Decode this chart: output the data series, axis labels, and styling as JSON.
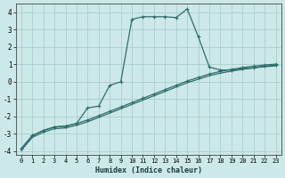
{
  "xlabel": "Humidex (Indice chaleur)",
  "bg_color": "#cde8e8",
  "grid_color": "#aacece",
  "line_color": "#2d6e6a",
  "xlim": [
    -0.5,
    23.5
  ],
  "ylim": [
    -4.2,
    4.5
  ],
  "xticks": [
    0,
    1,
    2,
    3,
    4,
    5,
    6,
    7,
    8,
    9,
    10,
    11,
    12,
    13,
    14,
    15,
    16,
    17,
    18,
    19,
    20,
    21,
    22,
    23
  ],
  "yticks": [
    -4,
    -3,
    -2,
    -1,
    0,
    1,
    2,
    3,
    4
  ],
  "line1_x": [
    0,
    1,
    2,
    3,
    4,
    5,
    6,
    7,
    8,
    9,
    10,
    11,
    12,
    13,
    14,
    15,
    16,
    17,
    18,
    19,
    20,
    21,
    22,
    23
  ],
  "line1_y": [
    -3.85,
    -3.1,
    -2.8,
    -2.6,
    -2.55,
    -2.4,
    -2.2,
    -1.95,
    -1.7,
    -1.45,
    -1.2,
    -0.95,
    -0.7,
    -0.45,
    -0.2,
    0.05,
    0.25,
    0.45,
    0.6,
    0.72,
    0.82,
    0.9,
    0.97,
    1.02
  ],
  "line2_x": [
    0,
    1,
    2,
    3,
    4,
    5,
    6,
    7,
    8,
    9,
    10,
    11,
    12,
    13,
    14,
    15,
    16,
    17,
    18,
    19,
    20,
    21,
    22,
    23
  ],
  "line2_y": [
    -3.95,
    -3.2,
    -2.9,
    -2.7,
    -2.65,
    -2.5,
    -2.3,
    -2.05,
    -1.8,
    -1.55,
    -1.3,
    -1.05,
    -0.8,
    -0.55,
    -0.3,
    -0.05,
    0.15,
    0.35,
    0.5,
    0.62,
    0.72,
    0.8,
    0.87,
    0.92
  ],
  "curve_x": [
    0,
    1,
    2,
    3,
    4,
    5,
    6,
    7,
    8,
    9,
    10,
    11,
    12,
    13,
    14,
    15,
    16,
    17,
    18,
    19,
    20,
    21,
    22,
    23
  ],
  "curve_y": [
    -3.85,
    -3.1,
    -2.8,
    -2.6,
    -2.55,
    -2.4,
    -1.5,
    -1.4,
    -0.2,
    0.0,
    3.6,
    3.75,
    3.75,
    3.75,
    3.7,
    4.2,
    2.6,
    0.85,
    0.68,
    0.68,
    0.75,
    0.82,
    0.9,
    0.97
  ]
}
